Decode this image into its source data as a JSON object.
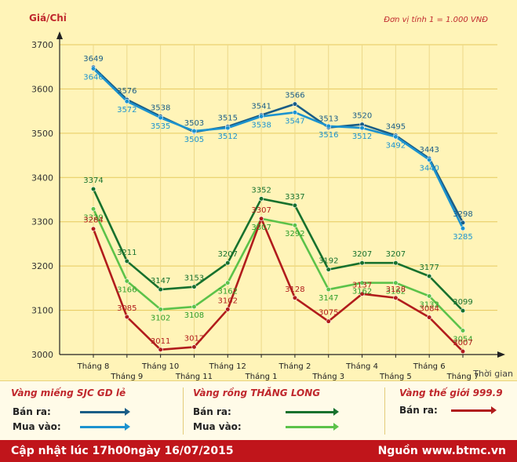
{
  "chart_data": {
    "type": "line",
    "title": "",
    "ylabel": "Giá/Chỉ",
    "xlabel": "Thời gian",
    "unit_note": "Đơn vị tính 1 = 1.000 VNĐ",
    "ylim": [
      3000,
      3700
    ],
    "yticks": [
      3000,
      3100,
      3200,
      3300,
      3400,
      3500,
      3600,
      3700
    ],
    "categories": [
      "Tháng 8",
      "Tháng 9",
      "Tháng 10",
      "Tháng 11",
      "Tháng 12",
      "Tháng 1",
      "Tháng 2",
      "Tháng 3",
      "Tháng 4",
      "Tháng 5",
      "Tháng 6",
      "Tháng 7"
    ],
    "series": [
      {
        "name": "Vàng miếng SJC GD lẻ - Bán ra",
        "color": "#1a5d86",
        "values": [
          3649,
          3576,
          3538,
          3503,
          3515,
          3541,
          3566,
          3513,
          3520,
          3495,
          3443,
          3298
        ]
      },
      {
        "name": "Vàng miếng SJC GD lẻ - Mua vào",
        "color": "#1c93cf",
        "values": [
          3646,
          3572,
          3535,
          3505,
          3512,
          3538,
          3547,
          3516,
          3512,
          3492,
          3440,
          3285
        ]
      },
      {
        "name": "Vàng rồng THĂNG LONG - Bán ra",
        "color": "#17712d",
        "values": [
          3374,
          3211,
          3147,
          3153,
          3207,
          3352,
          3337,
          3192,
          3207,
          3207,
          3177,
          3099
        ]
      },
      {
        "name": "Vàng rồng THĂNG LONG - Mua vào",
        "color": "#5cc24a",
        "values": [
          3329,
          3166,
          3102,
          3108,
          3162,
          3307,
          3292,
          3147,
          3162,
          3162,
          3132,
          3054
        ]
      },
      {
        "name": "Vàng thế giới 999.9 - Bán ra",
        "color": "#b11c1c",
        "values": [
          3284,
          3085,
          3011,
          3017,
          3102,
          3307,
          3128,
          3075,
          3137,
          3128,
          3084,
          3007
        ]
      }
    ]
  },
  "legend": {
    "groups": [
      {
        "title": "Vàng miếng SJC GD lẻ",
        "rows": [
          {
            "label": "Bán ra:"
          },
          {
            "label": "Mua vào:"
          }
        ]
      },
      {
        "title": "Vàng rồng THĂNG LONG",
        "rows": [
          {
            "label": "Bán ra:"
          },
          {
            "label": "Mua vào:"
          }
        ]
      },
      {
        "title": "Vàng thế giới 999.9",
        "rows": [
          {
            "label": "Bán ra:"
          }
        ]
      }
    ]
  },
  "footer": {
    "update": "Cập nhật lúc 17h00ngày 16/07/2015",
    "source": "Nguồn www.btmc.vn"
  }
}
